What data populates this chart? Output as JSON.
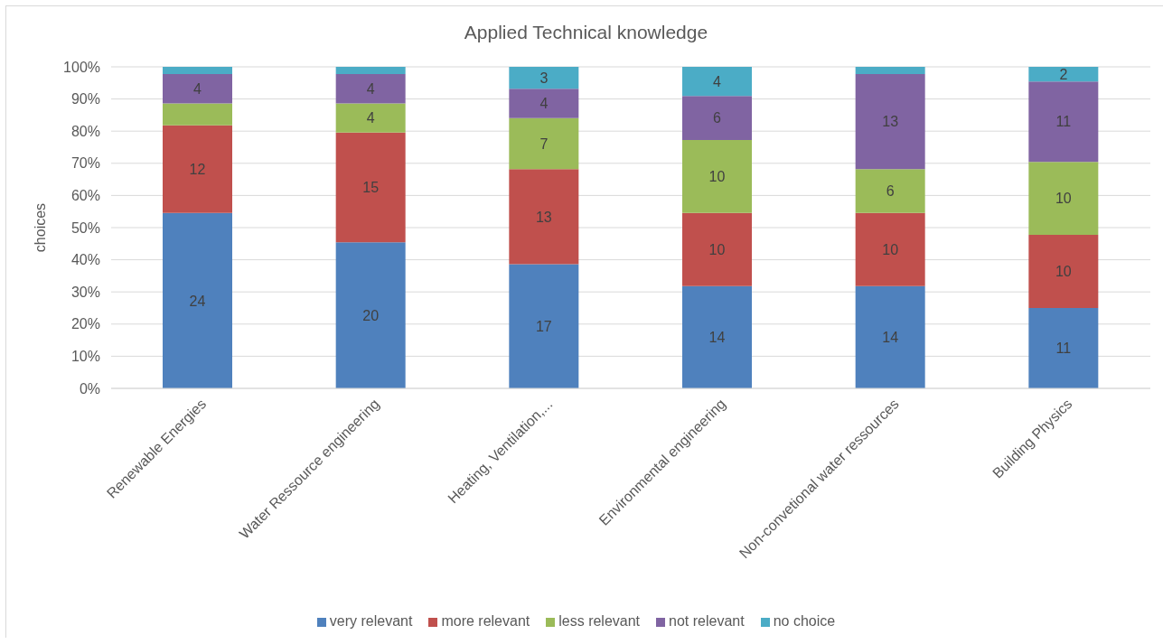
{
  "chart_data": {
    "type": "bar",
    "title": "Applied Technical knowledge",
    "ylabel": "choices",
    "categories": [
      "Renewable Energies",
      "Water Ressource engineering",
      "Heating, Ventilation,...",
      "Environmental engineering",
      "Non-convetional water ressources",
      "Building Physics"
    ],
    "series": [
      {
        "name": "very relevant",
        "color": "#4f81bd",
        "axis": "y2",
        "values": [
          24,
          20,
          17,
          14,
          14,
          11
        ],
        "value_labels": [
          "24",
          "20",
          "17",
          "14",
          "14",
          "11"
        ]
      },
      {
        "name": "more relevant",
        "color": "#c0504d",
        "axis": "y2",
        "values": [
          12,
          15,
          13,
          10,
          10,
          10
        ],
        "value_labels": [
          "12",
          "15",
          "13",
          "10",
          "10",
          "10"
        ]
      },
      {
        "name": "less relevant",
        "color": "#9bbb59",
        "axis": "y2",
        "values": [
          3,
          4,
          7,
          10,
          6,
          10
        ],
        "value_labels": [
          null,
          "4",
          "7",
          "10",
          "6",
          "10"
        ]
      },
      {
        "name": "not relevant",
        "color": "#8064a2",
        "axis": "y2",
        "values": [
          4,
          4,
          4,
          6,
          13,
          11
        ],
        "value_labels": [
          "4",
          "4",
          "4",
          "6",
          "13",
          "11"
        ]
      },
      {
        "name": "no choice",
        "color": "#4bacc6",
        "axis": "y2",
        "values": [
          1,
          1,
          3,
          4,
          1,
          2
        ],
        "value_labels": [
          null,
          null,
          "3",
          "4",
          null,
          "2"
        ]
      }
    ],
    "stacked": true,
    "ylim": [
      0,
      100
    ],
    "yticks": [
      {
        "value": 0,
        "label": "0%"
      },
      {
        "value": 10,
        "label": "10%"
      },
      {
        "value": 20,
        "label": "20%"
      },
      {
        "value": 30,
        "label": "30%"
      },
      {
        "value": 40,
        "label": "40%"
      },
      {
        "value": 50,
        "label": "50%"
      },
      {
        "value": 60,
        "label": "60%"
      },
      {
        "value": 70,
        "label": "70%"
      },
      {
        "value": 80,
        "label": "80%"
      },
      {
        "value": 90,
        "label": "90%"
      },
      {
        "value": 100,
        "label": "100%"
      }
    ],
    "y2lim": [
      0,
      44
    ],
    "grid": "y",
    "legend": "bottom"
  }
}
